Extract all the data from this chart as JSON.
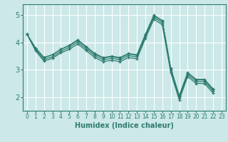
{
  "xlabel": "Humidex (Indice chaleur)",
  "bg_color": "#cce8e8",
  "grid_color": "#ffffff",
  "line_color": "#2d7b6f",
  "xlim": [
    -0.5,
    23.5
  ],
  "ylim": [
    1.5,
    5.4
  ],
  "xticks": [
    0,
    1,
    2,
    3,
    4,
    5,
    6,
    7,
    8,
    9,
    10,
    11,
    12,
    13,
    14,
    15,
    16,
    17,
    18,
    19,
    20,
    21,
    22,
    23
  ],
  "yticks": [
    2,
    3,
    4,
    5
  ],
  "x": [
    0,
    1,
    2,
    3,
    4,
    5,
    6,
    7,
    8,
    9,
    10,
    11,
    12,
    13,
    14,
    15,
    16,
    17,
    18,
    19,
    20,
    21,
    22
  ],
  "series": [
    [
      4.3,
      3.8,
      3.45,
      3.55,
      3.75,
      3.9,
      4.1,
      3.85,
      3.6,
      3.45,
      3.5,
      3.45,
      3.6,
      3.55,
      4.3,
      5.0,
      4.8,
      3.05,
      2.05,
      2.9,
      2.65,
      2.65,
      2.3
    ],
    [
      4.3,
      3.8,
      3.45,
      3.55,
      3.75,
      3.88,
      4.08,
      3.83,
      3.58,
      3.43,
      3.48,
      3.43,
      3.58,
      3.53,
      4.28,
      4.98,
      4.78,
      3.03,
      2.03,
      2.88,
      2.63,
      2.63,
      2.28
    ],
    [
      4.3,
      3.75,
      3.38,
      3.48,
      3.68,
      3.82,
      4.02,
      3.77,
      3.52,
      3.37,
      3.42,
      3.37,
      3.52,
      3.47,
      4.22,
      4.92,
      4.72,
      2.97,
      1.97,
      2.82,
      2.57,
      2.57,
      2.22
    ],
    [
      4.3,
      3.7,
      3.32,
      3.42,
      3.62,
      3.75,
      3.95,
      3.7,
      3.45,
      3.3,
      3.35,
      3.3,
      3.45,
      3.4,
      4.15,
      4.85,
      4.65,
      2.9,
      1.9,
      2.75,
      2.5,
      2.5,
      2.15
    ]
  ]
}
